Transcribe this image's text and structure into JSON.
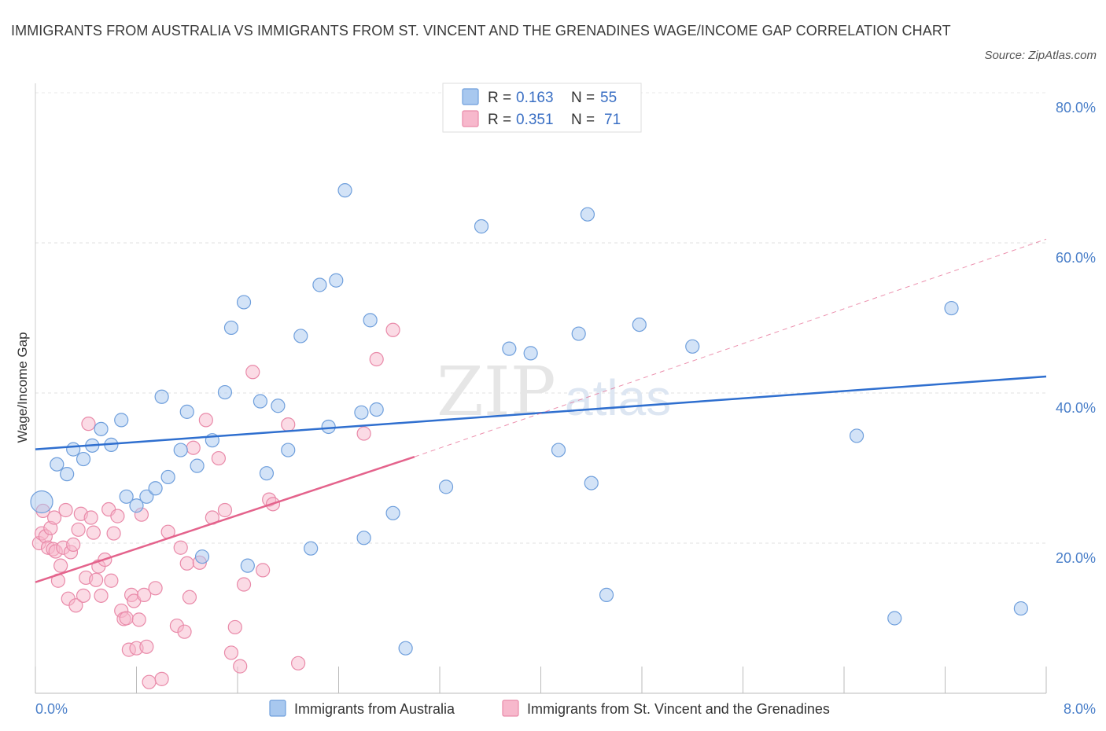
{
  "title": "IMMIGRANTS FROM AUSTRALIA VS IMMIGRANTS FROM ST. VINCENT AND THE GRENADINES WAGE/INCOME GAP CORRELATION CHART",
  "source": "Source: ZipAtlas.com",
  "watermark": {
    "zip": "ZIP",
    "atlas": "atlas"
  },
  "chart_data": {
    "type": "scatter",
    "title": "IMMIGRANTS FROM AUSTRALIA VS IMMIGRANTS FROM ST. VINCENT AND THE GRENADINES WAGE/INCOME GAP CORRELATION CHART",
    "xlabel": "",
    "ylabel": "Wage/Income Gap",
    "xlim": [
      0,
      8
    ],
    "ylim": [
      0,
      80
    ],
    "x_tick_labels": [
      "0.0%",
      "8.0%"
    ],
    "y_ticks": [
      20,
      40,
      60,
      80
    ],
    "y_tick_labels": [
      "20.0%",
      "40.0%",
      "60.0%",
      "80.0%"
    ],
    "grid": true,
    "legend_position": "top-center",
    "legend": [
      {
        "r_label": "R =",
        "r_value": "0.163",
        "n_label": "N =",
        "n_value": "55",
        "color": "#a8c8ef",
        "stroke": "#6f9fdc"
      },
      {
        "r_label": "R =",
        "r_value": "0.351",
        "n_label": "N =",
        "n_value": "71",
        "color": "#f7b8cc",
        "stroke": "#e98aa9"
      }
    ],
    "series": [
      {
        "name": "Immigrants from Australia",
        "color": "#a8c8ef",
        "stroke": "#6f9fdc",
        "trend_color": "#2f6fcf",
        "trend": {
          "x0": 0.0,
          "y0": 32.5,
          "x1": 8.0,
          "y1": 42.2
        },
        "points": [
          [
            0.05,
            25.5
          ],
          [
            0.17,
            30.5
          ],
          [
            0.25,
            29.2
          ],
          [
            0.3,
            32.5
          ],
          [
            0.38,
            31.2
          ],
          [
            0.45,
            33.0
          ],
          [
            0.52,
            35.2
          ],
          [
            0.6,
            33.1
          ],
          [
            0.68,
            36.4
          ],
          [
            0.72,
            26.2
          ],
          [
            0.8,
            25.0
          ],
          [
            0.88,
            26.2
          ],
          [
            0.95,
            27.3
          ],
          [
            1.0,
            39.5
          ],
          [
            1.05,
            28.8
          ],
          [
            1.15,
            32.4
          ],
          [
            1.2,
            37.5
          ],
          [
            1.28,
            30.3
          ],
          [
            1.32,
            18.2
          ],
          [
            1.4,
            33.7
          ],
          [
            1.5,
            40.1
          ],
          [
            1.55,
            48.7
          ],
          [
            1.65,
            52.1
          ],
          [
            1.68,
            17.0
          ],
          [
            1.78,
            38.9
          ],
          [
            1.83,
            29.3
          ],
          [
            1.92,
            38.3
          ],
          [
            2.0,
            32.4
          ],
          [
            2.1,
            47.6
          ],
          [
            2.18,
            19.3
          ],
          [
            2.25,
            54.4
          ],
          [
            2.32,
            35.5
          ],
          [
            2.38,
            55.0
          ],
          [
            2.45,
            67.0
          ],
          [
            2.58,
            37.4
          ],
          [
            2.6,
            20.7
          ],
          [
            2.65,
            49.7
          ],
          [
            2.7,
            37.8
          ],
          [
            2.83,
            24.0
          ],
          [
            2.93,
            6.0
          ],
          [
            3.25,
            27.5
          ],
          [
            3.53,
            62.2
          ],
          [
            3.75,
            45.9
          ],
          [
            3.92,
            45.3
          ],
          [
            4.14,
            32.4
          ],
          [
            4.3,
            47.9
          ],
          [
            4.37,
            63.8
          ],
          [
            4.4,
            28.0
          ],
          [
            4.52,
            13.1
          ],
          [
            4.78,
            49.1
          ],
          [
            5.2,
            46.2
          ],
          [
            6.5,
            34.3
          ],
          [
            6.8,
            10.0
          ],
          [
            7.25,
            51.3
          ],
          [
            7.8,
            11.3
          ]
        ]
      },
      {
        "name": "Immigrants from St. Vincent and the Grenadines",
        "color": "#f7b8cc",
        "stroke": "#e98aa9",
        "trend_color": "#e4638c",
        "trend": {
          "x0": 0.0,
          "y0": 14.8,
          "x1": 3.0,
          "y1": 31.5
        },
        "trend_dashed": {
          "x0": 3.0,
          "y0": 31.5,
          "x1": 8.0,
          "y1": 60.5
        },
        "points": [
          [
            0.03,
            20.0
          ],
          [
            0.05,
            21.3
          ],
          [
            0.06,
            24.3
          ],
          [
            0.08,
            20.9
          ],
          [
            0.1,
            19.4
          ],
          [
            0.12,
            22.0
          ],
          [
            0.14,
            19.2
          ],
          [
            0.15,
            23.4
          ],
          [
            0.16,
            18.9
          ],
          [
            0.18,
            15.0
          ],
          [
            0.2,
            17.0
          ],
          [
            0.22,
            19.4
          ],
          [
            0.24,
            24.4
          ],
          [
            0.26,
            12.6
          ],
          [
            0.28,
            18.8
          ],
          [
            0.3,
            19.8
          ],
          [
            0.32,
            11.7
          ],
          [
            0.34,
            21.8
          ],
          [
            0.36,
            23.9
          ],
          [
            0.38,
            13.0
          ],
          [
            0.4,
            15.4
          ],
          [
            0.42,
            35.9
          ],
          [
            0.44,
            23.4
          ],
          [
            0.46,
            21.4
          ],
          [
            0.48,
            15.1
          ],
          [
            0.5,
            16.9
          ],
          [
            0.52,
            13.0
          ],
          [
            0.55,
            17.8
          ],
          [
            0.58,
            24.5
          ],
          [
            0.6,
            15.0
          ],
          [
            0.62,
            21.3
          ],
          [
            0.65,
            23.6
          ],
          [
            0.68,
            11.0
          ],
          [
            0.7,
            9.9
          ],
          [
            0.72,
            10.0
          ],
          [
            0.74,
            5.8
          ],
          [
            0.76,
            13.1
          ],
          [
            0.78,
            12.3
          ],
          [
            0.8,
            6.0
          ],
          [
            0.82,
            9.8
          ],
          [
            0.84,
            23.8
          ],
          [
            0.86,
            13.1
          ],
          [
            0.88,
            6.2
          ],
          [
            0.9,
            1.5
          ],
          [
            0.95,
            14.0
          ],
          [
            1.0,
            1.9
          ],
          [
            1.05,
            21.5
          ],
          [
            1.12,
            9.0
          ],
          [
            1.15,
            19.4
          ],
          [
            1.18,
            8.2
          ],
          [
            1.2,
            17.3
          ],
          [
            1.22,
            12.8
          ],
          [
            1.25,
            32.7
          ],
          [
            1.3,
            17.4
          ],
          [
            1.35,
            36.4
          ],
          [
            1.4,
            23.4
          ],
          [
            1.45,
            31.3
          ],
          [
            1.5,
            24.4
          ],
          [
            1.55,
            5.4
          ],
          [
            1.58,
            8.8
          ],
          [
            1.62,
            3.6
          ],
          [
            1.65,
            14.5
          ],
          [
            1.72,
            42.8
          ],
          [
            1.8,
            16.4
          ],
          [
            1.85,
            25.8
          ],
          [
            1.88,
            25.2
          ],
          [
            2.0,
            35.8
          ],
          [
            2.08,
            4.0
          ],
          [
            2.6,
            34.6
          ],
          [
            2.7,
            44.5
          ],
          [
            2.83,
            48.4
          ]
        ]
      }
    ]
  },
  "bottom_legend": [
    {
      "label": "Immigrants from Australia",
      "color": "#a8c8ef",
      "stroke": "#6f9fdc"
    },
    {
      "label": "Immigrants from St. Vincent and the Grenadines",
      "color": "#f7b8cc",
      "stroke": "#e98aa9"
    }
  ]
}
